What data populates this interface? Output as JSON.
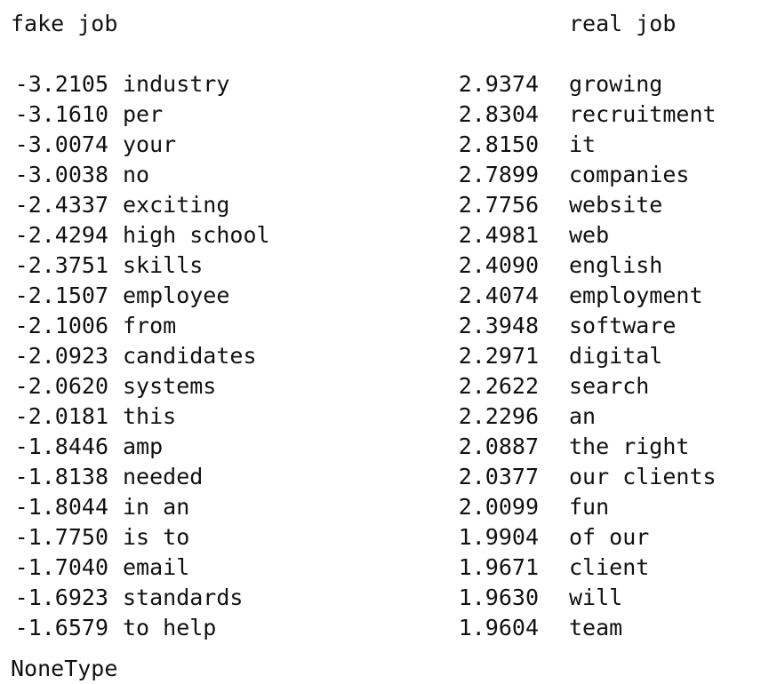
{
  "headers": {
    "left": "fake job",
    "right": "real job"
  },
  "fake_job": [
    {
      "coef": "-3.2105",
      "term": "industry"
    },
    {
      "coef": "-3.1610",
      "term": "per"
    },
    {
      "coef": "-3.0074",
      "term": "your"
    },
    {
      "coef": "-3.0038",
      "term": "no"
    },
    {
      "coef": "-2.4337",
      "term": "exciting"
    },
    {
      "coef": "-2.4294",
      "term": "high school"
    },
    {
      "coef": "-2.3751",
      "term": "skills"
    },
    {
      "coef": "-2.1507",
      "term": "employee"
    },
    {
      "coef": "-2.1006",
      "term": "from"
    },
    {
      "coef": "-2.0923",
      "term": "candidates"
    },
    {
      "coef": "-2.0620",
      "term": "systems"
    },
    {
      "coef": "-2.0181",
      "term": "this"
    },
    {
      "coef": "-1.8446",
      "term": "amp"
    },
    {
      "coef": "-1.8138",
      "term": "needed"
    },
    {
      "coef": "-1.8044",
      "term": "in an"
    },
    {
      "coef": "-1.7750",
      "term": "is to"
    },
    {
      "coef": "-1.7040",
      "term": "email"
    },
    {
      "coef": "-1.6923",
      "term": "standards"
    },
    {
      "coef": "-1.6579",
      "term": "to help"
    }
  ],
  "real_job": [
    {
      "coef": "2.9374",
      "term": "growing"
    },
    {
      "coef": "2.8304",
      "term": "recruitment"
    },
    {
      "coef": "2.8150",
      "term": "it"
    },
    {
      "coef": "2.7899",
      "term": "companies"
    },
    {
      "coef": "2.7756",
      "term": "website"
    },
    {
      "coef": "2.4981",
      "term": "web"
    },
    {
      "coef": "2.4090",
      "term": "english"
    },
    {
      "coef": "2.4074",
      "term": "employment"
    },
    {
      "coef": "2.3948",
      "term": "software"
    },
    {
      "coef": "2.2971",
      "term": "digital"
    },
    {
      "coef": "2.2622",
      "term": "search"
    },
    {
      "coef": "2.2296",
      "term": "an"
    },
    {
      "coef": "2.0887",
      "term": "the right"
    },
    {
      "coef": "2.0377",
      "term": "our clients"
    },
    {
      "coef": "2.0099",
      "term": "fun"
    },
    {
      "coef": "1.9904",
      "term": "of our"
    },
    {
      "coef": "1.9671",
      "term": "client"
    },
    {
      "coef": "1.9630",
      "term": "will"
    },
    {
      "coef": "1.9604",
      "term": "team"
    }
  ],
  "footer": "NoneType"
}
